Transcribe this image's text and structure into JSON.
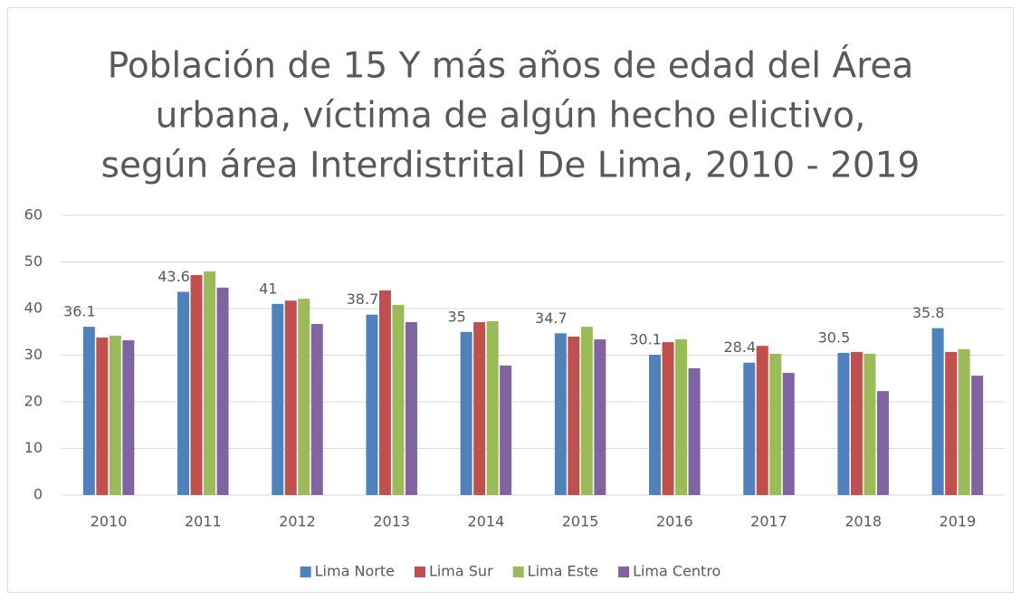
{
  "chart_data": {
    "type": "bar",
    "title": [
      "Población de 15 Y más años de edad del Área",
      "urbana, víctima de algún hecho elictivo,",
      "según área Interdistrital De Lima, 2010 - 2019"
    ],
    "categories": [
      "2010",
      "2011",
      "2012",
      "2013",
      "2014",
      "2015",
      "2016",
      "2017",
      "2018",
      "2019"
    ],
    "series": [
      {
        "name": "Lima Norte",
        "color": "#4f81bd",
        "values": [
          36.1,
          43.6,
          41,
          38.7,
          35,
          34.7,
          30.1,
          28.4,
          30.5,
          35.8
        ],
        "data_labels": true
      },
      {
        "name": "Lima Sur",
        "color": "#c0504d",
        "values": [
          33.8,
          47.2,
          41.7,
          43.9,
          37.1,
          34.0,
          32.8,
          32.0,
          30.7,
          30.7
        ]
      },
      {
        "name": "Lima Este",
        "color": "#9bbb59",
        "values": [
          34.2,
          48.0,
          42.1,
          40.8,
          37.3,
          36.1,
          33.4,
          30.3,
          30.3,
          31.3
        ]
      },
      {
        "name": "Lima Centro",
        "color": "#8064a2",
        "values": [
          33.2,
          44.5,
          36.7,
          37.1,
          27.8,
          33.4,
          27.2,
          26.2,
          22.3,
          25.6
        ]
      }
    ],
    "ylim": [
      0,
      60
    ],
    "yticks": [
      0,
      10,
      20,
      30,
      40,
      50,
      60
    ],
    "grid": true,
    "legend": "bottom"
  }
}
